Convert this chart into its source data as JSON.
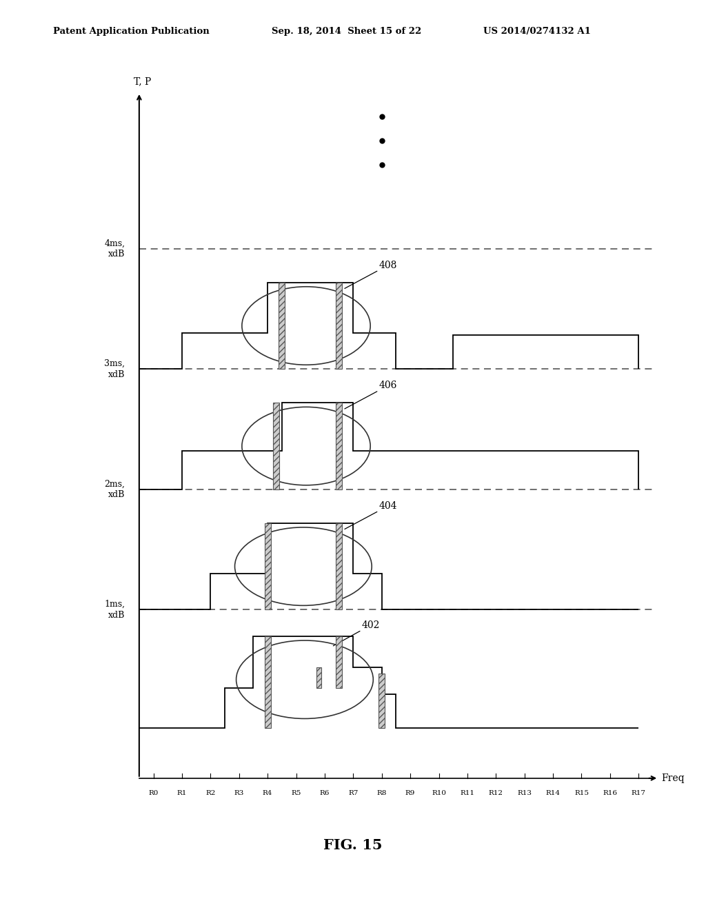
{
  "header_left": "Patent Application Publication",
  "header_mid": "Sep. 18, 2014  Sheet 15 of 22",
  "header_right": "US 2014/0274132 A1",
  "fig_label": "FIG. 15",
  "y_axis_label": "T, P",
  "x_axis_label": "Freq",
  "x_ticks": [
    "R0",
    "R1",
    "R2",
    "R3",
    "R4",
    "R5",
    "R6",
    "R7",
    "R8",
    "R9",
    "R10",
    "R11",
    "R12",
    "R13",
    "R14",
    "R15",
    "R16",
    "R17"
  ],
  "background_color": "#ffffff",
  "line_color": "#000000",
  "dashed_color": "#555555",
  "hatch_face": "#cccccc",
  "hatch_edge": "#555555"
}
